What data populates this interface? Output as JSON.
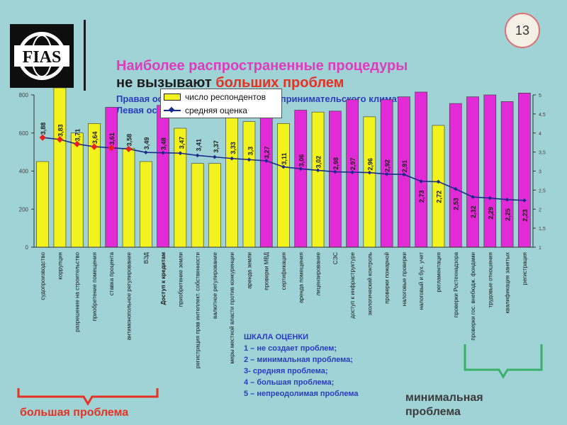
{
  "page_number": "13",
  "logo_text": "FIAS",
  "title": {
    "line1": "Наиболее распространенные процедуры",
    "line2_part1": "не вызывают ",
    "line2_part2": "больших проблем",
    "line3": "Правая ось – оценка элемента предпринимательского климата",
    "line4": "Левая ось"
  },
  "legend": {
    "respondents": "число респондентов",
    "average": "средняя оценка"
  },
  "scale": {
    "title": "ШКАЛА ОЦЕНКИ",
    "items": [
      "1 – не создает проблем;",
      "2 – минимальная проблема;",
      "3- средняя проблема;",
      "4 – большая проблема;",
      "5 – непреодолимая проблема"
    ]
  },
  "annotations": {
    "big_problem": "большая проблема",
    "min_problem_line1": "минимальная",
    "min_problem_line2": "проблема"
  },
  "colors": {
    "yellow": "#f2f21e",
    "magenta": "#e12bd6",
    "line": "#1a2a8a",
    "red_marker": "#e8201c",
    "bracket_red": "#e53222",
    "bracket_green": "#3bb06a"
  },
  "chart_data": {
    "type": "bar",
    "left_axis": {
      "ticks": [
        "0",
        "200",
        "400",
        "600",
        "800"
      ],
      "range": [
        0,
        800
      ]
    },
    "right_axis": {
      "ticks": [
        "1",
        "1,5",
        "2",
        "2,5",
        "3",
        "3,5",
        "4",
        "4,5",
        "5"
      ],
      "range": [
        1,
        5
      ]
    },
    "categories": [
      "судопроизводство",
      "коррупция",
      "разрешение на строительство",
      "приобретение помещения",
      "ставка процента",
      "антимонопольное регулирование",
      "ВЭД",
      "Доступ к кредитам",
      "приобретение земли",
      "регистрация прав интеллект. собственности",
      "валютное регулирование",
      "меры местной власти против конкуренции",
      "аренда земли",
      "проверки МВД",
      "сертификация",
      "аренда помещения",
      "лицензирование",
      "СЭС",
      "доступ к инфраструктуре",
      "экологический контроль",
      "проверки пожарной",
      "налоговые проверки",
      "налоговый и бух. учет",
      "регламентация",
      "проверки Ростехнадзора",
      "проверки гос. внебюдж. фондами",
      "трудовые отношения",
      "квалификация занятых",
      "регистрация"
    ],
    "series": [
      {
        "name": "число респондентов",
        "axis": "left",
        "values": [
          450,
          860,
          600,
          650,
          735,
          520,
          450,
          745,
          625,
          440,
          440,
          740,
          660,
          765,
          650,
          720,
          710,
          715,
          775,
          685,
          775,
          790,
          815,
          640,
          755,
          790,
          800,
          765,
          810
        ],
        "colors": [
          "yellow",
          "yellow",
          "yellow",
          "yellow",
          "magenta",
          "yellow",
          "yellow",
          "magenta",
          "yellow",
          "yellow",
          "yellow",
          "yellow",
          "yellow",
          "magenta",
          "yellow",
          "magenta",
          "yellow",
          "magenta",
          "magenta",
          "yellow",
          "magenta",
          "magenta",
          "magenta",
          "yellow",
          "magenta",
          "magenta",
          "magenta",
          "magenta",
          "magenta"
        ]
      },
      {
        "name": "средняя оценка",
        "axis": "right",
        "values": [
          3.88,
          3.83,
          3.71,
          3.64,
          3.61,
          3.58,
          3.49,
          3.48,
          3.47,
          3.41,
          3.37,
          3.33,
          3.3,
          3.27,
          3.11,
          3.06,
          3.02,
          2.98,
          2.97,
          2.96,
          2.92,
          2.91,
          2.73,
          2.72,
          2.53,
          2.32,
          2.29,
          2.25,
          2.23
        ],
        "labels": [
          "3,88",
          "3,83",
          "3,71",
          "3,64",
          "3,61",
          "3,58",
          "3,49",
          "3,48",
          "3,47",
          "3,41",
          "3,37",
          "3,33",
          "3,3",
          "3,27",
          "3,11",
          "3,06",
          "3,02",
          "2,98",
          "2,97",
          "2,96",
          "2,92",
          "2,91",
          "2,73",
          "2,72",
          "2,53",
          "2,32",
          "2,29",
          "2,25",
          "2,23"
        ],
        "red_marker_count": 6
      }
    ]
  }
}
